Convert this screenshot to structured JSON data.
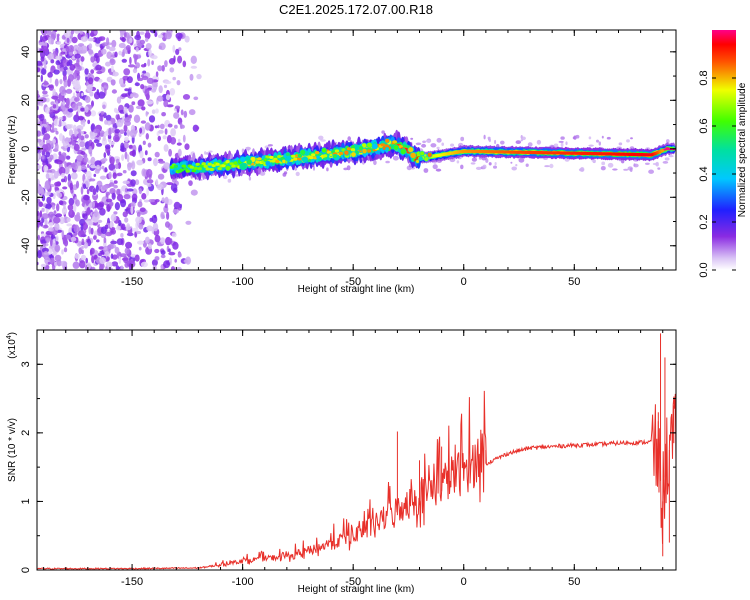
{
  "title": "C2E1.2025.172.07.00.R18",
  "chart_data": [
    {
      "type": "heatmap",
      "xlabel": "Height of straight line (km)",
      "ylabel": "Frequency (Hz)",
      "xlim": [
        -193,
        96
      ],
      "ylim": [
        -50,
        49
      ],
      "xticks": [
        -150,
        -100,
        -50,
        0,
        50
      ],
      "yticks": [
        -40,
        -20,
        0,
        20,
        40
      ],
      "colorbar": {
        "label": "Normalized spectral amplitude",
        "range": [
          0,
          1
        ],
        "ticks": [
          "0.0",
          "0.2",
          "0.4",
          "0.6",
          "0.8"
        ],
        "colormap": "rainbow (white-violet-blue-cyan-green-yellow-red-magenta)"
      },
      "ridge_profile": [
        {
          "x": -130,
          "freq": -8,
          "amplitude": 0.15
        },
        {
          "x": -110,
          "freq": -7,
          "amplitude": 0.25
        },
        {
          "x": -90,
          "freq": -5,
          "amplitude": 0.3
        },
        {
          "x": -70,
          "freq": -3,
          "amplitude": 0.35
        },
        {
          "x": -50,
          "freq": -1,
          "amplitude": 0.35
        },
        {
          "x": -30,
          "freq": 2,
          "amplitude": 0.4
        },
        {
          "x": -20,
          "freq": -4,
          "amplitude": 0.6
        },
        {
          "x": 0,
          "freq": -1,
          "amplitude": 0.8
        },
        {
          "x": 30,
          "freq": -1.5,
          "amplitude": 0.9
        },
        {
          "x": 60,
          "freq": -2,
          "amplitude": 0.95
        },
        {
          "x": 85,
          "freq": -2.5,
          "amplitude": 1.0
        },
        {
          "x": 92,
          "freq": 0,
          "amplitude": 0.7
        }
      ]
    },
    {
      "type": "line",
      "xlabel": "Height of straight line (km)",
      "ylabel": "SNR (10 * v/v)",
      "y_multiplier": "(x10",
      "y_multiplier_exp": "4",
      "y_multiplier_close": ")",
      "xlim": [
        -193,
        96
      ],
      "ylim": [
        0,
        3.5
      ],
      "xticks": [
        -150,
        -100,
        -50,
        0,
        50
      ],
      "yticks": [
        0,
        1,
        2,
        3
      ],
      "color": "#e8302a",
      "series": [
        {
          "points": [
            [
              -193,
              0.02
            ],
            [
              -150,
              0.02
            ],
            [
              -120,
              0.03
            ],
            [
              -110,
              0.07
            ],
            [
              -100,
              0.12
            ],
            [
              -90,
              0.15
            ],
            [
              -80,
              0.18
            ],
            [
              -70,
              0.25
            ],
            [
              -60,
              0.35
            ],
            [
              -50,
              0.45
            ],
            [
              -40,
              0.6
            ],
            [
              -30,
              0.8
            ],
            [
              -20,
              0.95
            ],
            [
              -10,
              1.15
            ],
            [
              0,
              1.3
            ],
            [
              10,
              1.55
            ],
            [
              20,
              1.7
            ],
            [
              30,
              1.78
            ],
            [
              40,
              1.8
            ],
            [
              50,
              1.82
            ],
            [
              60,
              1.83
            ],
            [
              70,
              1.85
            ],
            [
              80,
              1.86
            ],
            [
              85,
              1.87
            ],
            [
              88,
              1.6
            ],
            [
              90,
              1.0
            ],
            [
              92,
              1.7
            ],
            [
              96,
              1.9
            ]
          ],
          "spikes": [
            [
              -30,
              2.02
            ],
            [
              -20,
              1.6
            ],
            [
              -10,
              1.8
            ],
            [
              0,
              1.5
            ],
            [
              10,
              1.75
            ],
            [
              88,
              2.3
            ],
            [
              89,
              3.45
            ],
            [
              90,
              0.2
            ],
            [
              91,
              3.1
            ],
            [
              93,
              0.4
            ],
            [
              95,
              2.4
            ]
          ]
        }
      ]
    }
  ]
}
